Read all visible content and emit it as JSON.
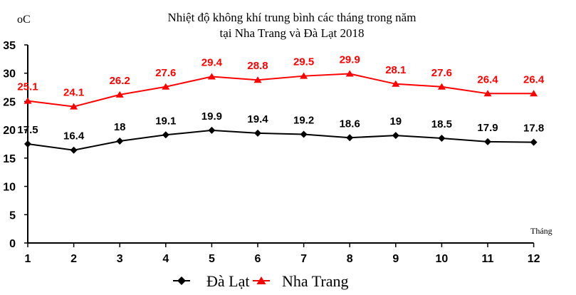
{
  "chart_data": {
    "type": "line",
    "title_line1": "Nhiệt độ không khí trung bình các tháng trong năm",
    "title_line2": "tại Nha Trang và Đà Lạt 2018",
    "y_unit": "oC",
    "xlabel": "Tháng",
    "categories": [
      "1",
      "2",
      "3",
      "4",
      "5",
      "6",
      "7",
      "8",
      "9",
      "10",
      "11",
      "12"
    ],
    "yticks": [
      "0",
      "5",
      "10",
      "15",
      "20",
      "25",
      "30",
      "35"
    ],
    "ylim": [
      0,
      35
    ],
    "grid": false,
    "legend_position": "bottom",
    "series": [
      {
        "name": "Đà Lạt",
        "marker": "diamond",
        "color": "#000000",
        "values": [
          17.5,
          16.4,
          18,
          19.1,
          19.9,
          19.4,
          19.2,
          18.6,
          19,
          18.5,
          17.9,
          17.8
        ],
        "labels": [
          "17.5",
          "16.4",
          "18",
          "19.1",
          "19.9",
          "19.4",
          "19.2",
          "18.6",
          "19",
          "18.5",
          "17.9",
          "17.8"
        ]
      },
      {
        "name": "Nha Trang",
        "marker": "triangle",
        "color": "#ff0000",
        "values": [
          25.1,
          24.1,
          26.2,
          27.6,
          29.4,
          28.8,
          29.5,
          29.9,
          28.1,
          27.6,
          26.4,
          26.4
        ],
        "labels": [
          "25.1",
          "24.1",
          "26.2",
          "27.6",
          "29.4",
          "28.8",
          "29.5",
          "29.9",
          "28.1",
          "27.6",
          "26.4",
          "26.4"
        ]
      }
    ]
  }
}
